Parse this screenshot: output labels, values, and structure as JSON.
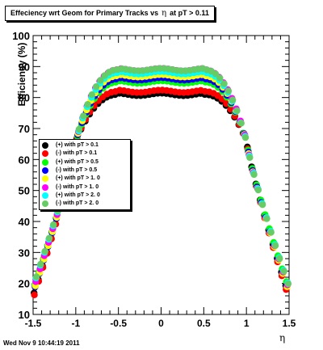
{
  "chart_data": {
    "type": "scatter",
    "title_prefix": "Effeciency wrt Geom for Primary Tracks vs",
    "title_eta": "η",
    "title_suffix": "at pT > 0.11",
    "ylabel": "Efficiency (%)",
    "xlabel": "η",
    "xlim": [
      -1.5,
      1.5
    ],
    "ylim": [
      10,
      100
    ],
    "xticks": [
      "-1.5",
      "-1",
      "-0.5",
      "0",
      "0.5",
      "1",
      "1.5"
    ],
    "yticks": [
      "10",
      "20",
      "30",
      "40",
      "50",
      "60",
      "70",
      "80",
      "90",
      "100"
    ],
    "grid": false,
    "legend_position": "left-center",
    "series": [
      {
        "name": "(+) with pT > 0.1",
        "color": "#000000",
        "plateau": 81,
        "edge": 16
      },
      {
        "name": "(-) with pT > 0.1",
        "color": "#ff0000",
        "plateau": 82,
        "edge": 15
      },
      {
        "name": "(+) with pT > 0.5",
        "color": "#00ff00",
        "plateau": 85,
        "edge": 18
      },
      {
        "name": "(-) with pT > 0.5",
        "color": "#0000ff",
        "plateau": 86,
        "edge": 17
      },
      {
        "name": "(+) with pT > 1. 0",
        "color": "#ffff00",
        "plateau": 87,
        "edge": 17
      },
      {
        "name": "(-) with pT > 1. 0",
        "color": "#ff00ff",
        "plateau": 89,
        "edge": 18
      },
      {
        "name": "(+) with pT > 2. 0",
        "color": "#00ffff",
        "plateau": 88,
        "edge": 19
      },
      {
        "name": "(-) with pT > 2. 0",
        "color": "#66cc66",
        "plateau": 89,
        "edge": 19
      }
    ]
  },
  "footer": "Wed Nov  9 10:44:19 2011"
}
